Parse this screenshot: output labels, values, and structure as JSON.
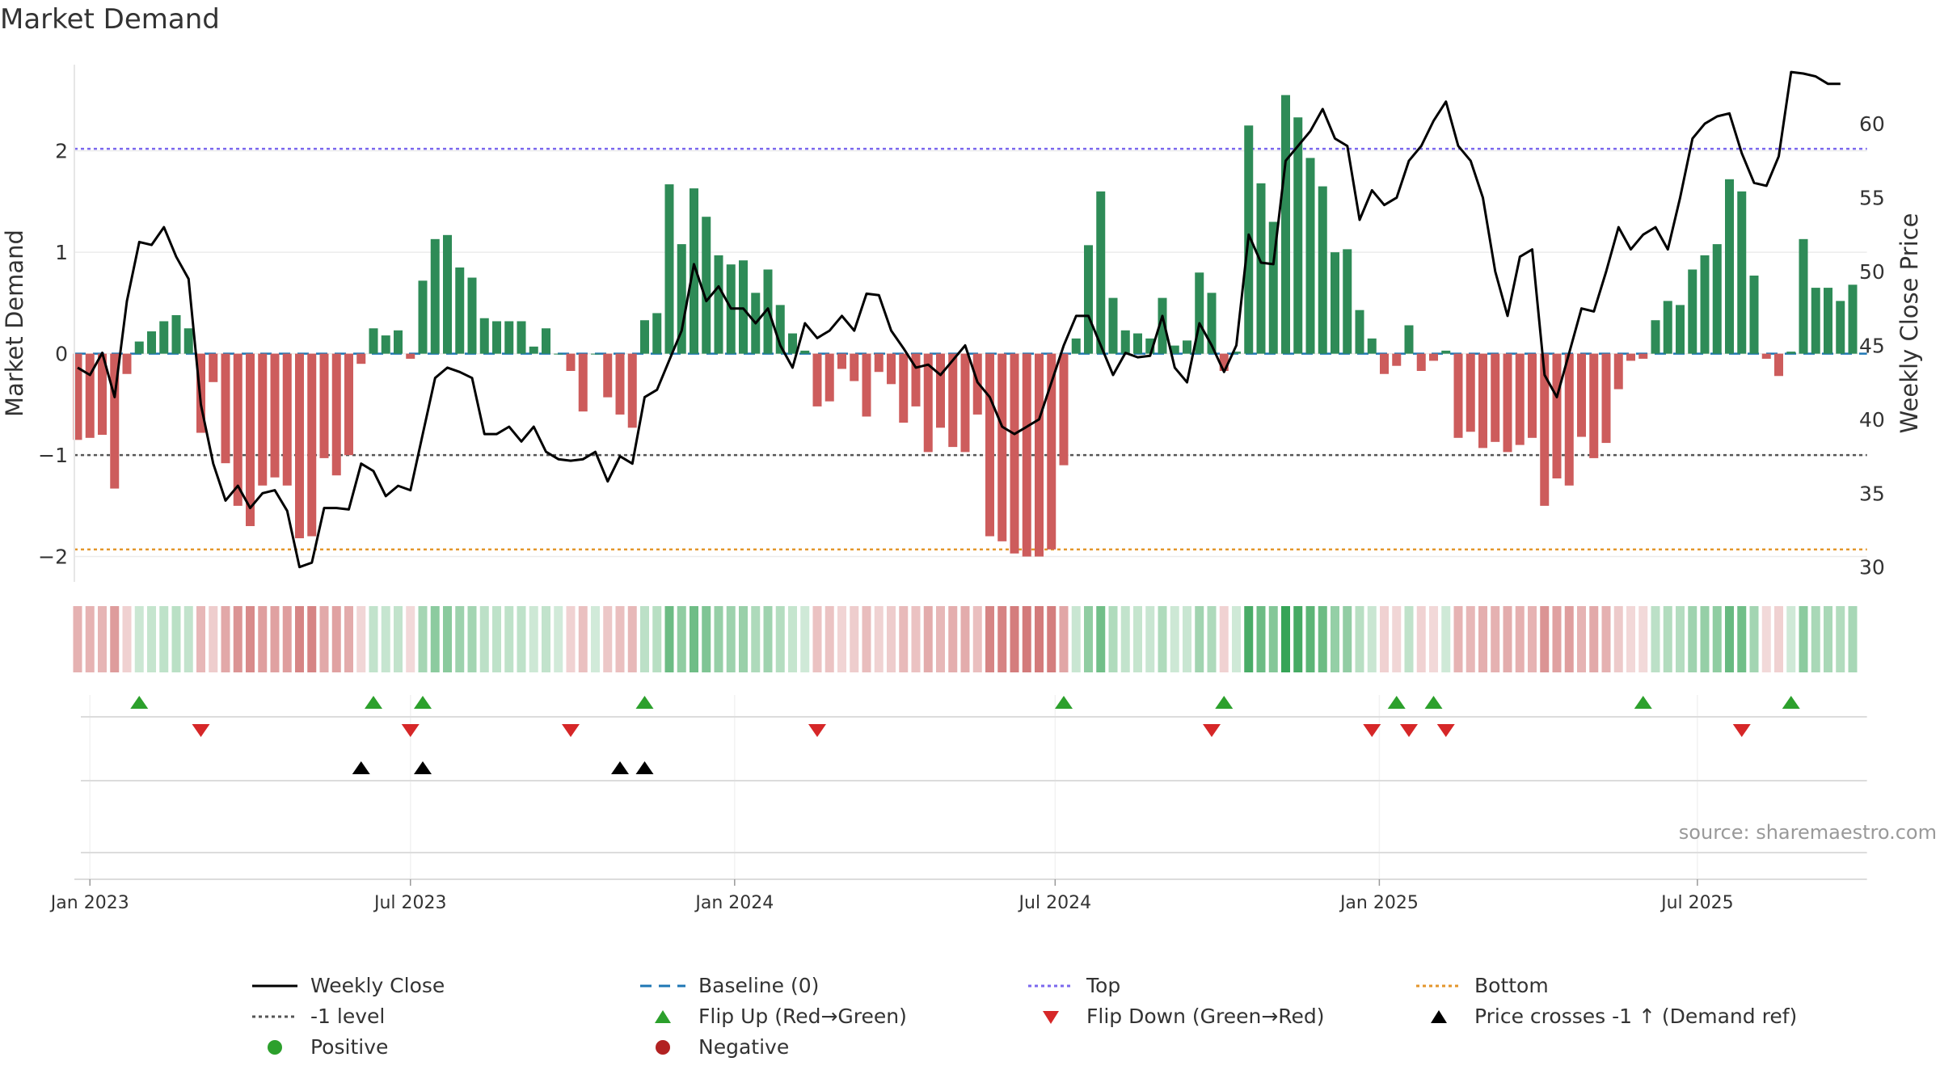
{
  "chart_data": {
    "type": "bar",
    "title": "Market Demand",
    "ylabel": "Market Demand",
    "y2label": "Weekly Close Price",
    "ylim": [
      -2.25,
      2.85
    ],
    "y2lim": [
      29.0,
      64.0
    ],
    "yticks": [
      2,
      1,
      0,
      -1,
      -2
    ],
    "ytick_labels": [
      "2",
      "1",
      "0",
      "−1",
      "−2"
    ],
    "y2ticks": [
      60,
      55,
      50,
      45,
      40,
      35,
      30
    ],
    "y2tick_labels": [
      "60",
      "55",
      "50",
      "45",
      "40",
      "35",
      "30"
    ],
    "top_level": 2.02,
    "bottom_level": -1.93,
    "minus_one_level": -1.0,
    "start_date": "2022-12-26",
    "date_ticks": [
      {
        "label": "Jan 2023",
        "week": 1
      },
      {
        "label": "Jul 2023",
        "week": 27
      },
      {
        "label": "Jan 2024",
        "week": 53.3
      },
      {
        "label": "Jul 2024",
        "week": 79.3
      },
      {
        "label": "Jan 2025",
        "week": 105.6
      },
      {
        "label": "Jul 2025",
        "week": 131.4
      }
    ],
    "demand": [
      -0.85,
      -0.83,
      -0.8,
      -1.33,
      -0.2,
      0.12,
      0.22,
      0.32,
      0.38,
      0.25,
      -0.78,
      -0.28,
      -1.08,
      -1.5,
      -1.7,
      -1.3,
      -1.22,
      -1.3,
      -1.82,
      -1.8,
      -1.03,
      -1.2,
      -1.0,
      -0.1,
      0.25,
      0.18,
      0.23,
      -0.05,
      0.72,
      1.13,
      1.17,
      0.85,
      0.75,
      0.35,
      0.32,
      0.32,
      0.32,
      0.07,
      0.25,
      0.0,
      -0.17,
      -0.57,
      0.0,
      -0.43,
      -0.6,
      -0.73,
      0.33,
      0.4,
      1.67,
      1.08,
      1.63,
      1.35,
      0.97,
      0.88,
      0.92,
      0.6,
      0.83,
      0.48,
      0.2,
      0.03,
      -0.52,
      -0.47,
      -0.15,
      -0.27,
      -0.62,
      -0.18,
      -0.3,
      -0.68,
      -0.52,
      -0.97,
      -0.73,
      -0.92,
      -0.97,
      -0.6,
      -1.8,
      -1.85,
      -1.97,
      -2.0,
      -2.0,
      -1.93,
      -1.1,
      0.15,
      1.07,
      1.6,
      0.55,
      0.23,
      0.2,
      0.15,
      0.55,
      0.08,
      0.13,
      0.8,
      0.6,
      -0.17,
      0.02,
      2.25,
      1.68,
      1.3,
      2.55,
      2.33,
      1.93,
      1.65,
      1.0,
      1.03,
      0.43,
      0.15,
      -0.2,
      -0.12,
      0.28,
      -0.17,
      -0.07,
      0.03,
      -0.83,
      -0.77,
      -0.93,
      -0.87,
      -0.97,
      -0.9,
      -0.83,
      -1.5,
      -1.23,
      -1.3,
      -0.82,
      -1.03,
      -0.88,
      -0.35,
      -0.07,
      -0.05,
      0.33,
      0.52,
      0.48,
      0.83,
      0.97,
      1.08,
      1.72,
      1.6,
      0.77,
      -0.05,
      -0.22,
      0.02,
      1.13,
      0.65,
      0.65,
      0.52,
      0.68
    ],
    "price": [
      43.5,
      43.0,
      44.5,
      41.5,
      48.0,
      52.0,
      51.8,
      53.0,
      51.0,
      49.5,
      41.0,
      37.0,
      34.5,
      35.5,
      34.0,
      35.0,
      35.2,
      33.8,
      30.0,
      30.3,
      34.0,
      34.0,
      33.9,
      37.0,
      36.5,
      34.8,
      35.5,
      35.2,
      39.0,
      42.8,
      43.5,
      43.2,
      42.8,
      39.0,
      39.0,
      39.5,
      38.5,
      39.5,
      37.8,
      37.3,
      37.2,
      37.3,
      37.8,
      35.8,
      37.5,
      37.0,
      41.5,
      42.0,
      44.0,
      46.0,
      50.5,
      48.0,
      49.0,
      47.5,
      47.5,
      46.5,
      47.5,
      45.0,
      43.5,
      46.5,
      45.5,
      46.0,
      47.0,
      46.0,
      48.5,
      48.4,
      46.0,
      44.8,
      43.5,
      43.7,
      43.0,
      44.0,
      45.0,
      42.5,
      41.5,
      39.5,
      39.0,
      39.5,
      40.0,
      42.5,
      45.0,
      47.0,
      47.0,
      45.0,
      43.0,
      44.5,
      44.2,
      44.3,
      47.0,
      43.5,
      42.5,
      46.5,
      45.0,
      43.2,
      45.0,
      52.5,
      50.6,
      50.5,
      57.5,
      58.5,
      59.5,
      61.0,
      59.0,
      58.5,
      53.5,
      55.5,
      54.5,
      55.0,
      57.5,
      58.5,
      60.2,
      61.5,
      58.5,
      57.5,
      55.0,
      50.0,
      47.0,
      51.0,
      51.5,
      43.0,
      41.5,
      44.5,
      47.5,
      47.3,
      50.0,
      53.0,
      51.5,
      52.5,
      53.0,
      51.5,
      55.0,
      59.0,
      60.0,
      60.5,
      60.7,
      58.0,
      56.0,
      55.8,
      57.8,
      63.5,
      63.4,
      63.2,
      62.7,
      62.7
    ],
    "flip_up_weeks": [
      5,
      24,
      28,
      46,
      80,
      93,
      107,
      110,
      127,
      139
    ],
    "flip_down_weeks": [
      10,
      27,
      40,
      60,
      92,
      105,
      108,
      111,
      135
    ],
    "price_cross_weeks": [
      23,
      28,
      44,
      46
    ],
    "source": "source: sharemaestro.com",
    "legend": [
      {
        "key": "close",
        "label": "Weekly Close"
      },
      {
        "key": "baseline",
        "label": "Baseline (0)"
      },
      {
        "key": "top",
        "label": "Top"
      },
      {
        "key": "bottom",
        "label": "Bottom"
      },
      {
        "key": "minus1",
        "label": "-1 level"
      },
      {
        "key": "flipup",
        "label": "Flip Up (Red→Green)"
      },
      {
        "key": "flipdown",
        "label": "Flip Down (Green→Red)"
      },
      {
        "key": "cross",
        "label": "Price crosses -1 ↑ (Demand ref)"
      },
      {
        "key": "pos",
        "label": "Positive"
      },
      {
        "key": "neg",
        "label": "Negative"
      }
    ],
    "colors": {
      "positive": "#2e8b57",
      "negative": "#cd5c5c",
      "price_line": "#000000",
      "baseline": "#1f77b4",
      "top": "#7b68ee",
      "bottom": "#e3962b",
      "minus_one": "#555555",
      "flip_up": "#2ca02c",
      "flip_down": "#d62728",
      "cross": "#000000",
      "pos_dot": "#2ca02c",
      "neg_dot": "#b22222"
    }
  }
}
